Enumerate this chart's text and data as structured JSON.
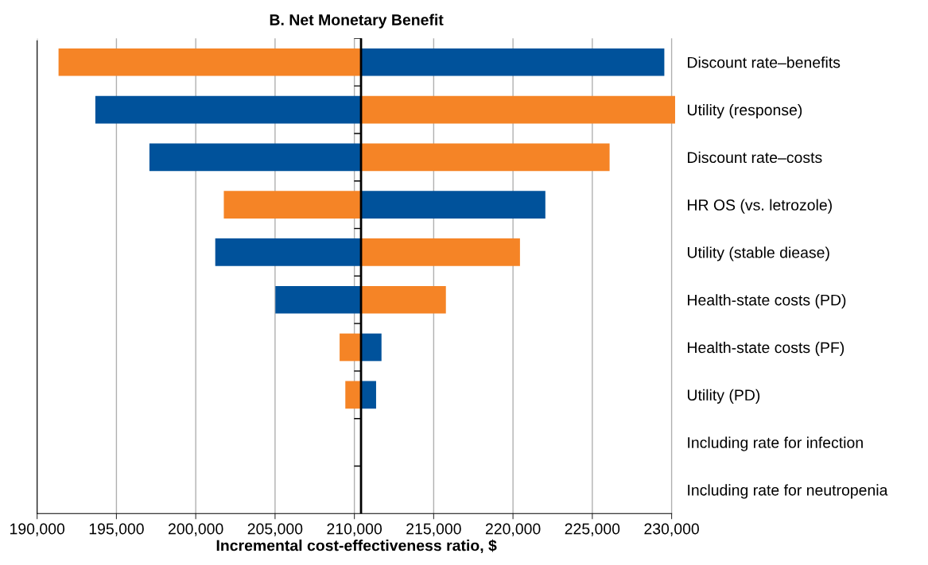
{
  "chart_data": {
    "type": "bar",
    "orientation": "horizontal",
    "title": "B. Net Monetary Benefit",
    "xlabel": "Incremental cost-effectiveness ratio, $",
    "categories": [
      "Discount rate–benefits",
      "Utility (response)",
      "Discount rate–costs",
      "HR OS (vs. letrozole)",
      "Utility (stable diease)",
      "Health-state costs (PD)",
      "Health-state costs (PF)",
      "Utility (PD)",
      "Including rate for infection",
      "Including rate for neutropenia"
    ],
    "series": [
      {
        "base": [
          191350,
          193670,
          197080,
          201770,
          201230,
          205020,
          209070,
          209430,
          null,
          null
        ],
        "values": [
          19070,
          16750,
          13340,
          8650,
          9190,
          5400,
          1350,
          990,
          null,
          null
        ],
        "colors": [
          "#f58426",
          "#00529b",
          "#00529b",
          "#f58426",
          "#00529b",
          "#00529b",
          "#f58426",
          "#f58426",
          "#00529b",
          "#00529b"
        ]
      },
      {
        "base": [
          210420,
          210420,
          210420,
          210420,
          210420,
          210420,
          210420,
          210420,
          null,
          null
        ],
        "values": [
          19120,
          19800,
          15670,
          11620,
          10020,
          5350,
          1290,
          950,
          null,
          null
        ],
        "colors": [
          "#00529b",
          "#f58426",
          "#f58426",
          "#00529b",
          "#f58426",
          "#f58426",
          "#00529b",
          "#00529b",
          "#f58426",
          "#f58426"
        ]
      }
    ],
    "xlim": [
      190000,
      230250
    ],
    "xticks": [
      {
        "value": 190000,
        "label": "190,000"
      },
      {
        "value": 195000,
        "label": "195,000"
      },
      {
        "value": 200000,
        "label": "200,000"
      },
      {
        "value": 205000,
        "label": "205,000"
      },
      {
        "value": 210000,
        "label": "210,000"
      },
      {
        "value": 215000,
        "label": "215,000"
      },
      {
        "value": 220000,
        "label": "220,000"
      },
      {
        "value": 225000,
        "label": "225,000"
      },
      {
        "value": 230000,
        "label": "230,000"
      }
    ],
    "ref_lines": [
      {
        "axis": "x",
        "value": 210420,
        "color": "#000000"
      }
    ],
    "grid": "x"
  }
}
